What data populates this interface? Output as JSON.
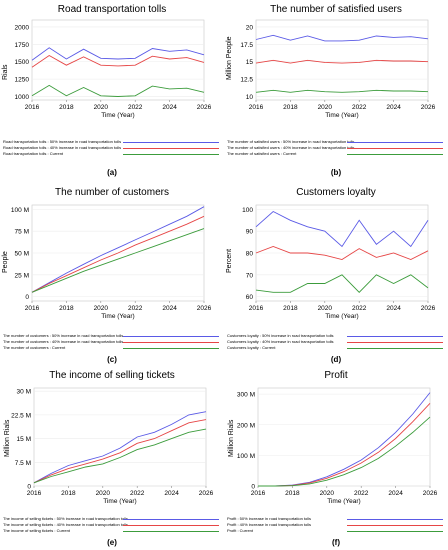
{
  "colors": {
    "series1": "#5a5ae6",
    "series2": "#e64646",
    "series3": "#3c9c3c"
  },
  "panels": [
    {
      "id": "a",
      "caption": "(a)",
      "title": "Road transportation tolls",
      "ylabel": "Rials",
      "xlabel": "Time  (Year)",
      "xticks": [
        "2016",
        "2018",
        "2020",
        "2022",
        "2024",
        "2026"
      ],
      "yticks": [
        "1000",
        "1250",
        "1500",
        "1750",
        "2000"
      ],
      "legend": [
        "Road transportation tolls : 50% increase in road transportation tolls",
        "Road transportation tolls : 40% increase in road transportation tolls",
        "Road transportation tolls : Current"
      ]
    },
    {
      "id": "b",
      "caption": "(b)",
      "title": "The number of satisfied users",
      "ylabel": "Million People",
      "xlabel": "Time  (Year)",
      "xticks": [
        "2016",
        "2018",
        "2020",
        "2022",
        "2024",
        "2026"
      ],
      "yticks": [
        "10",
        "12.5",
        "15",
        "17.5",
        "20"
      ],
      "legend": [
        "The number of satisfied users : 50% increase in road transportation tolls",
        "The number of satisfied users : 40% increase in road transportation tolls",
        "The number of satisfied users : Current"
      ]
    },
    {
      "id": "c",
      "caption": "(c)",
      "title": "The number of customers",
      "ylabel": "People",
      "xlabel": "Time  (Year)",
      "xticks": [
        "2016",
        "2018",
        "2020",
        "2022",
        "2024",
        "2026"
      ],
      "yticks": [
        "0",
        "25 M",
        "50 M",
        "75 M",
        "100 M"
      ],
      "legend": [
        "The number of customers : 50% increase in road transportation tolls",
        "The number of customers : 40% increase in road transportation tolls",
        "The number of customers : Current"
      ]
    },
    {
      "id": "d",
      "caption": "(d)",
      "title": "Customers loyalty",
      "ylabel": "Percent",
      "xlabel": "Time  (Year)",
      "xticks": [
        "2016",
        "2018",
        "2020",
        "2022",
        "2024",
        "2026"
      ],
      "yticks": [
        "60",
        "70",
        "80",
        "90",
        "100"
      ],
      "legend": [
        "Customers loyalty : 50% increase in road transportation tolls",
        "Customers loyalty : 40% increase in road transportation tolls",
        "Customers loyalty : Current"
      ]
    },
    {
      "id": "e",
      "caption": "(e)",
      "title": "The income of selling tickets",
      "ylabel": "Million Rials",
      "xlabel": "Time  (Year)",
      "xticks": [
        "2016",
        "2018",
        "2020",
        "2022",
        "2024",
        "2026"
      ],
      "yticks": [
        "0",
        "7.5 M",
        "15 M",
        "22.5 M",
        "30 M"
      ],
      "legend": [
        "The income of selling tickets : 50% increase in road transportation tolls",
        "The income of selling tickets : 40% increase in road transportation tolls",
        "The income of selling tickets : Current"
      ]
    },
    {
      "id": "f",
      "caption": "(f)",
      "title": "Profit",
      "ylabel": "Million Rials",
      "xlabel": "Time  (Year)",
      "xticks": [
        "2016",
        "2018",
        "2020",
        "2022",
        "2024",
        "2026"
      ],
      "yticks": [
        "0",
        "100 M",
        "200 M",
        "300 M"
      ],
      "legend": [
        "Profit : 50% increase in road transportation tolls",
        "Profit : 40% increase in road transportation tolls",
        "Profit : Current"
      ]
    }
  ],
  "chart_data": [
    {
      "type": "line",
      "title": "Road transportation tolls",
      "xlabel": "Time  (Year)",
      "ylabel": "Rials",
      "xlim": [
        2016,
        2026
      ],
      "ylim": [
        950,
        2100
      ],
      "x": [
        2016,
        2017,
        2018,
        2019,
        2020,
        2021,
        2022,
        2023,
        2024,
        2025,
        2026
      ],
      "series": [
        {
          "name": "Road transportation tolls : 50% increase in road transportation tolls",
          "values": [
            1520,
            1700,
            1540,
            1680,
            1550,
            1540,
            1550,
            1690,
            1650,
            1670,
            1600
          ]
        },
        {
          "name": "Road transportation tolls : 40% increase in road transportation tolls",
          "values": [
            1420,
            1590,
            1450,
            1570,
            1450,
            1440,
            1450,
            1580,
            1540,
            1560,
            1490
          ]
        },
        {
          "name": "Road transportation tolls : Current",
          "values": [
            1010,
            1160,
            1010,
            1130,
            1010,
            1000,
            1010,
            1150,
            1110,
            1120,
            1060
          ]
        }
      ]
    },
    {
      "type": "line",
      "title": "The number of satisfied users",
      "xlabel": "Time  (Year)",
      "ylabel": "Million People",
      "xlim": [
        2016,
        2026
      ],
      "ylim": [
        9.5,
        21
      ],
      "x": [
        2016,
        2017,
        2018,
        2019,
        2020,
        2021,
        2022,
        2023,
        2024,
        2025,
        2026
      ],
      "series": [
        {
          "name": "The number of satisfied users : 50% increase in road transportation tolls",
          "values": [
            18.2,
            18.8,
            18.1,
            18.7,
            18.0,
            18.0,
            18.1,
            18.7,
            18.5,
            18.6,
            18.3
          ]
        },
        {
          "name": "The number of satisfied users : 40% increase in road transportation tolls",
          "values": [
            14.8,
            15.2,
            14.8,
            15.2,
            14.9,
            14.8,
            14.9,
            15.2,
            15.1,
            15.1,
            15.0
          ]
        },
        {
          "name": "The number of satisfied users : Current",
          "values": [
            10.6,
            10.9,
            10.6,
            10.9,
            10.7,
            10.6,
            10.7,
            10.9,
            10.8,
            10.8,
            10.7
          ]
        }
      ]
    },
    {
      "type": "line",
      "title": "The number of customers",
      "xlabel": "Time  (Year)",
      "ylabel": "People",
      "xlim": [
        2016,
        2026
      ],
      "ylim": [
        -5,
        105
      ],
      "x": [
        2016,
        2017,
        2018,
        2019,
        2020,
        2021,
        2022,
        2023,
        2024,
        2025,
        2026
      ],
      "series": [
        {
          "name": "The number of customers : 50% increase in road transportation tolls",
          "values": [
            5,
            16,
            27,
            37,
            47,
            56,
            65,
            74,
            83,
            92,
            103
          ]
        },
        {
          "name": "The number of customers : 40% increase in road transportation tolls",
          "values": [
            5,
            15,
            24,
            33,
            42,
            50,
            59,
            67,
            75,
            83,
            92
          ]
        },
        {
          "name": "The number of customers : Current",
          "values": [
            5,
            13,
            21,
            29,
            36,
            43,
            50,
            57,
            64,
            71,
            78
          ]
        }
      ]
    },
    {
      "type": "line",
      "title": "Customers loyalty",
      "xlabel": "Time  (Year)",
      "ylabel": "Percent",
      "xlim": [
        2016,
        2026
      ],
      "ylim": [
        58,
        102
      ],
      "x": [
        2016,
        2017,
        2018,
        2019,
        2020,
        2021,
        2022,
        2023,
        2024,
        2025,
        2026
      ],
      "series": [
        {
          "name": "Customers loyalty : 50% increase in road transportation tolls",
          "values": [
            92,
            99,
            95,
            92,
            90,
            83,
            95,
            84,
            90,
            83,
            95
          ]
        },
        {
          "name": "Customers loyalty : 40% increase in road transportation tolls",
          "values": [
            80,
            83,
            80,
            80,
            79,
            77,
            82,
            78,
            80,
            77,
            81
          ]
        },
        {
          "name": "Customers loyalty : Current",
          "values": [
            63,
            62,
            62,
            66,
            66,
            70,
            62,
            70,
            66,
            70,
            64
          ]
        }
      ]
    },
    {
      "type": "line",
      "title": "The income of selling tickets",
      "xlabel": "Time  (Year)",
      "ylabel": "Million Rials",
      "xlim": [
        2016,
        2026
      ],
      "ylim": [
        0,
        31
      ],
      "x": [
        2016,
        2017,
        2018,
        2019,
        2020,
        2021,
        2022,
        2023,
        2024,
        2025,
        2026
      ],
      "series": [
        {
          "name": "The income of selling tickets : 50% increase in road transportation tolls",
          "values": [
            1,
            4,
            6.5,
            8,
            9.5,
            12,
            15.5,
            17,
            19.5,
            22.5,
            23.5
          ]
        },
        {
          "name": "The income of selling tickets : 40% increase in road transportation tolls",
          "values": [
            1,
            3.5,
            5.5,
            7,
            8.5,
            10.5,
            13.5,
            15,
            17.5,
            20,
            21
          ]
        },
        {
          "name": "The income of selling tickets : Current",
          "values": [
            1,
            3,
            4.5,
            6,
            7,
            9,
            11.5,
            13,
            15,
            17,
            18
          ]
        }
      ]
    },
    {
      "type": "line",
      "title": "Profit",
      "xlabel": "Time  (Year)",
      "ylabel": "Million Rials",
      "xlim": [
        2016,
        2026
      ],
      "ylim": [
        0,
        320
      ],
      "x": [
        2016,
        2017,
        2018,
        2019,
        2020,
        2021,
        2022,
        2023,
        2024,
        2025,
        2026
      ],
      "series": [
        {
          "name": "Profit : 50% increase in road transportation tolls",
          "values": [
            0,
            0,
            3,
            12,
            30,
            55,
            85,
            125,
            175,
            235,
            305
          ]
        },
        {
          "name": "Profit : 40% increase in road transportation tolls",
          "values": [
            0,
            0,
            2,
            10,
            25,
            47,
            75,
            110,
            155,
            210,
            270
          ]
        },
        {
          "name": "Profit : Current",
          "values": [
            0,
            0,
            1,
            7,
            19,
            37,
            60,
            90,
            130,
            175,
            225
          ]
        }
      ]
    }
  ]
}
